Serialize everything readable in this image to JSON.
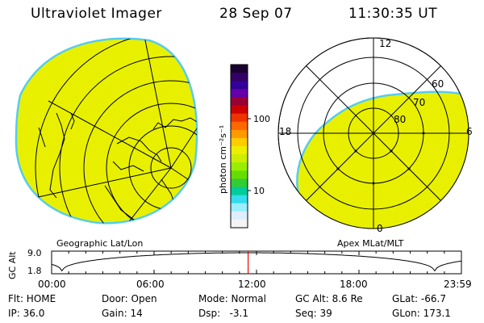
{
  "header": {
    "instrument": "Ultraviolet Imager",
    "date": "28 Sep 07",
    "time": "11:30:35 UT"
  },
  "geo_panel": {
    "label": "Geographic Lat/Lon"
  },
  "polar_panel": {
    "label": "Apex MLat/MLT",
    "mlt_labels": [
      "12",
      "18",
      "6",
      "0"
    ],
    "mlat_labels": [
      "60",
      "70",
      "80"
    ]
  },
  "colorbar": {
    "unit_label": "photon cm⁻²s⁻¹",
    "ticks": [
      "100",
      "10"
    ],
    "stops": [
      "#1a0033",
      "#330066",
      "#330099",
      "#6600aa",
      "#990033",
      "#cc0000",
      "#ee3300",
      "#ff6600",
      "#ff9900",
      "#ffcc00",
      "#eeee00",
      "#ccee00",
      "#99ee00",
      "#66dd00",
      "#33cc33",
      "#00cc99",
      "#33ddee",
      "#99eeff",
      "#ddeeff",
      "#f4f4f4"
    ]
  },
  "orbit": {
    "axis_label": "GC Alt",
    "y_ticks": [
      "9.0",
      "1.8"
    ],
    "x_ticks": [
      "00:00",
      "06:00",
      "12:00",
      "18:00",
      "23:59"
    ],
    "current_fraction": 0.4795
  },
  "info": {
    "row1": [
      "Flt: HOME",
      "Door: Open",
      "Mode: Normal",
      "GC Alt: 8.6 Re",
      "GLat: -66.7"
    ],
    "row2": [
      "IP: 36.0",
      "Gain: 14",
      "Dsp:   -3.1",
      "Seq: 39",
      "GLon: 173.1"
    ]
  },
  "colors": {
    "fill": "#e8f000",
    "fill_edge": "#55ccee",
    "marker": "#ee0000"
  }
}
